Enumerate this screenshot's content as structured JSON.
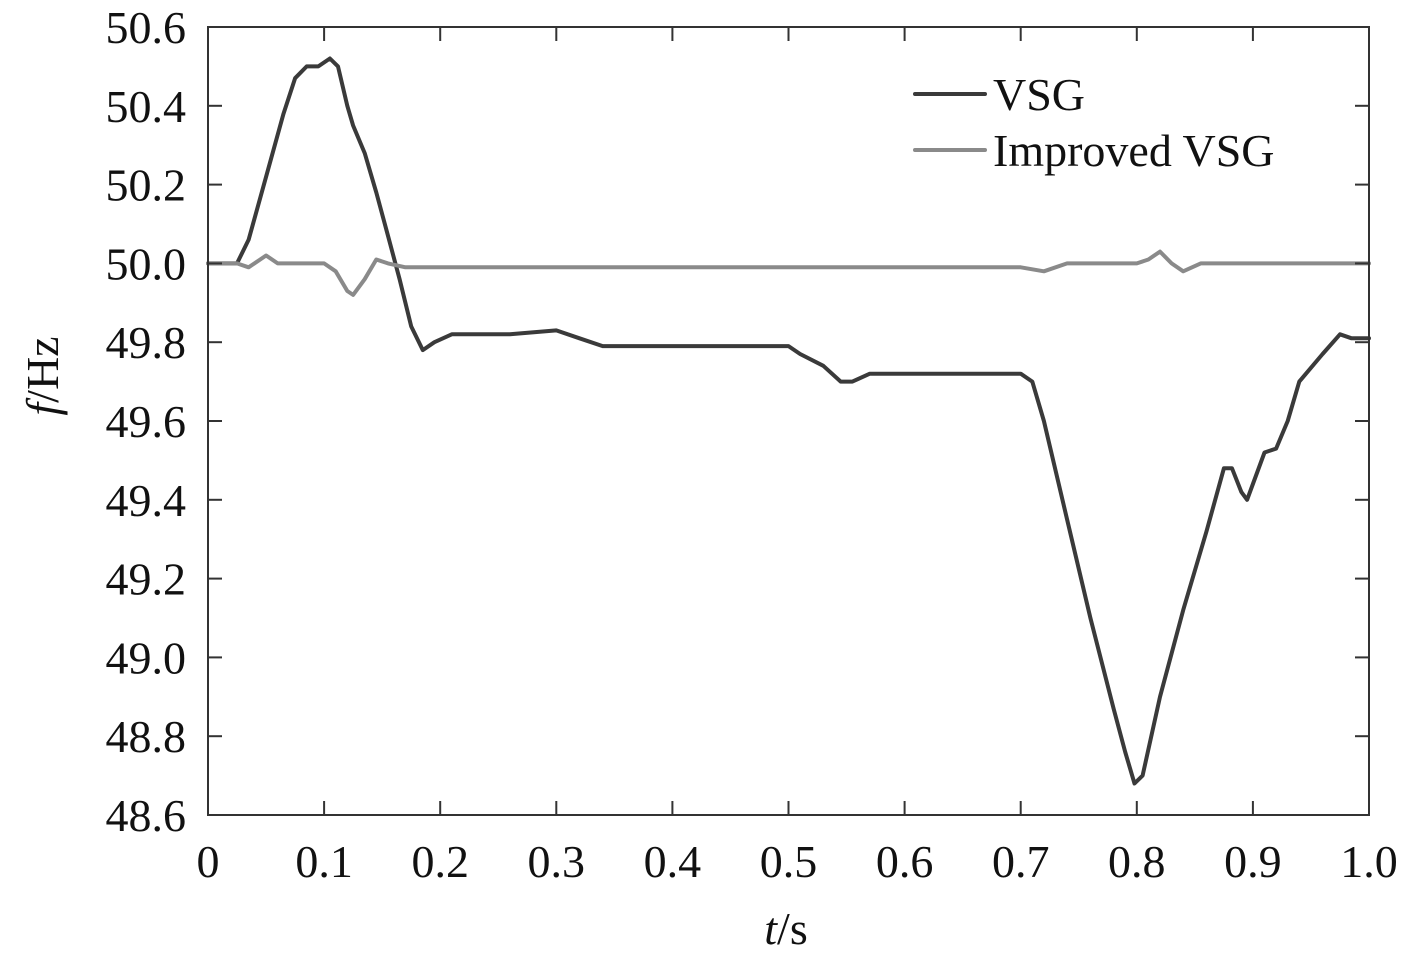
{
  "chart_data": {
    "type": "line",
    "xlabel": {
      "italic": "t",
      "rest": "/s"
    },
    "ylabel": {
      "italic": "f",
      "rest": "/Hz"
    },
    "xlim": [
      0,
      1.0
    ],
    "ylim": [
      48.6,
      50.6
    ],
    "x_ticks": [
      0,
      0.1,
      0.2,
      0.3,
      0.4,
      0.5,
      0.6,
      0.7,
      0.8,
      0.9,
      1.0
    ],
    "x_tick_labels": [
      "0",
      "0.1",
      "0.2",
      "0.3",
      "0.4",
      "0.5",
      "0.6",
      "0.7",
      "0.8",
      "0.9",
      "1.0"
    ],
    "y_ticks": [
      48.6,
      48.8,
      49.0,
      49.2,
      49.4,
      49.6,
      49.8,
      50.0,
      50.2,
      50.4,
      50.6
    ],
    "y_tick_labels": [
      "48.6",
      "48.8",
      "49.0",
      "49.2",
      "49.4",
      "49.6",
      "49.8",
      "50.0",
      "50.2",
      "50.4",
      "50.6"
    ],
    "grid": false,
    "legend_position": "top-right",
    "series": [
      {
        "name": "VSG",
        "color": "#3a3a3a",
        "points": [
          [
            0,
            50.0
          ],
          [
            0.025,
            50.0
          ],
          [
            0.035,
            50.06
          ],
          [
            0.05,
            50.22
          ],
          [
            0.065,
            50.38
          ],
          [
            0.075,
            50.47
          ],
          [
            0.085,
            50.5
          ],
          [
            0.095,
            50.5
          ],
          [
            0.105,
            50.52
          ],
          [
            0.112,
            50.5
          ],
          [
            0.12,
            50.4
          ],
          [
            0.125,
            50.35
          ],
          [
            0.135,
            50.28
          ],
          [
            0.145,
            50.18
          ],
          [
            0.155,
            50.07
          ],
          [
            0.165,
            49.96
          ],
          [
            0.175,
            49.84
          ],
          [
            0.185,
            49.78
          ],
          [
            0.195,
            49.8
          ],
          [
            0.21,
            49.82
          ],
          [
            0.23,
            49.82
          ],
          [
            0.26,
            49.82
          ],
          [
            0.3,
            49.83
          ],
          [
            0.32,
            49.81
          ],
          [
            0.34,
            49.79
          ],
          [
            0.36,
            49.79
          ],
          [
            0.4,
            49.79
          ],
          [
            0.45,
            49.79
          ],
          [
            0.5,
            49.79
          ],
          [
            0.51,
            49.77
          ],
          [
            0.53,
            49.74
          ],
          [
            0.545,
            49.7
          ],
          [
            0.555,
            49.7
          ],
          [
            0.57,
            49.72
          ],
          [
            0.6,
            49.72
          ],
          [
            0.65,
            49.72
          ],
          [
            0.7,
            49.72
          ],
          [
            0.71,
            49.7
          ],
          [
            0.72,
            49.6
          ],
          [
            0.74,
            49.35
          ],
          [
            0.76,
            49.1
          ],
          [
            0.78,
            48.87
          ],
          [
            0.79,
            48.76
          ],
          [
            0.798,
            48.68
          ],
          [
            0.805,
            48.7
          ],
          [
            0.82,
            48.9
          ],
          [
            0.84,
            49.12
          ],
          [
            0.86,
            49.32
          ],
          [
            0.875,
            49.48
          ],
          [
            0.882,
            49.48
          ],
          [
            0.89,
            49.42
          ],
          [
            0.895,
            49.4
          ],
          [
            0.9,
            49.44
          ],
          [
            0.91,
            49.52
          ],
          [
            0.92,
            49.53
          ],
          [
            0.93,
            49.6
          ],
          [
            0.94,
            49.7
          ],
          [
            0.96,
            49.77
          ],
          [
            0.975,
            49.82
          ],
          [
            0.985,
            49.81
          ],
          [
            1.0,
            49.81
          ]
        ]
      },
      {
        "name": "Improved VSG",
        "color": "#8a8a8a",
        "points": [
          [
            0,
            50.0
          ],
          [
            0.025,
            50.0
          ],
          [
            0.035,
            49.99
          ],
          [
            0.045,
            50.01
          ],
          [
            0.05,
            50.02
          ],
          [
            0.06,
            50.0
          ],
          [
            0.08,
            50.0
          ],
          [
            0.1,
            50.0
          ],
          [
            0.11,
            49.98
          ],
          [
            0.12,
            49.93
          ],
          [
            0.125,
            49.92
          ],
          [
            0.135,
            49.96
          ],
          [
            0.145,
            50.01
          ],
          [
            0.155,
            50.0
          ],
          [
            0.17,
            49.99
          ],
          [
            0.2,
            49.99
          ],
          [
            0.3,
            49.99
          ],
          [
            0.4,
            49.99
          ],
          [
            0.5,
            49.99
          ],
          [
            0.52,
            49.99
          ],
          [
            0.54,
            49.99
          ],
          [
            0.6,
            49.99
          ],
          [
            0.7,
            49.99
          ],
          [
            0.72,
            49.98
          ],
          [
            0.74,
            50.0
          ],
          [
            0.76,
            50.0
          ],
          [
            0.8,
            50.0
          ],
          [
            0.81,
            50.01
          ],
          [
            0.82,
            50.03
          ],
          [
            0.83,
            50.0
          ],
          [
            0.84,
            49.98
          ],
          [
            0.855,
            50.0
          ],
          [
            0.87,
            50.0
          ],
          [
            0.9,
            50.0
          ],
          [
            1.0,
            50.0
          ]
        ]
      }
    ]
  }
}
